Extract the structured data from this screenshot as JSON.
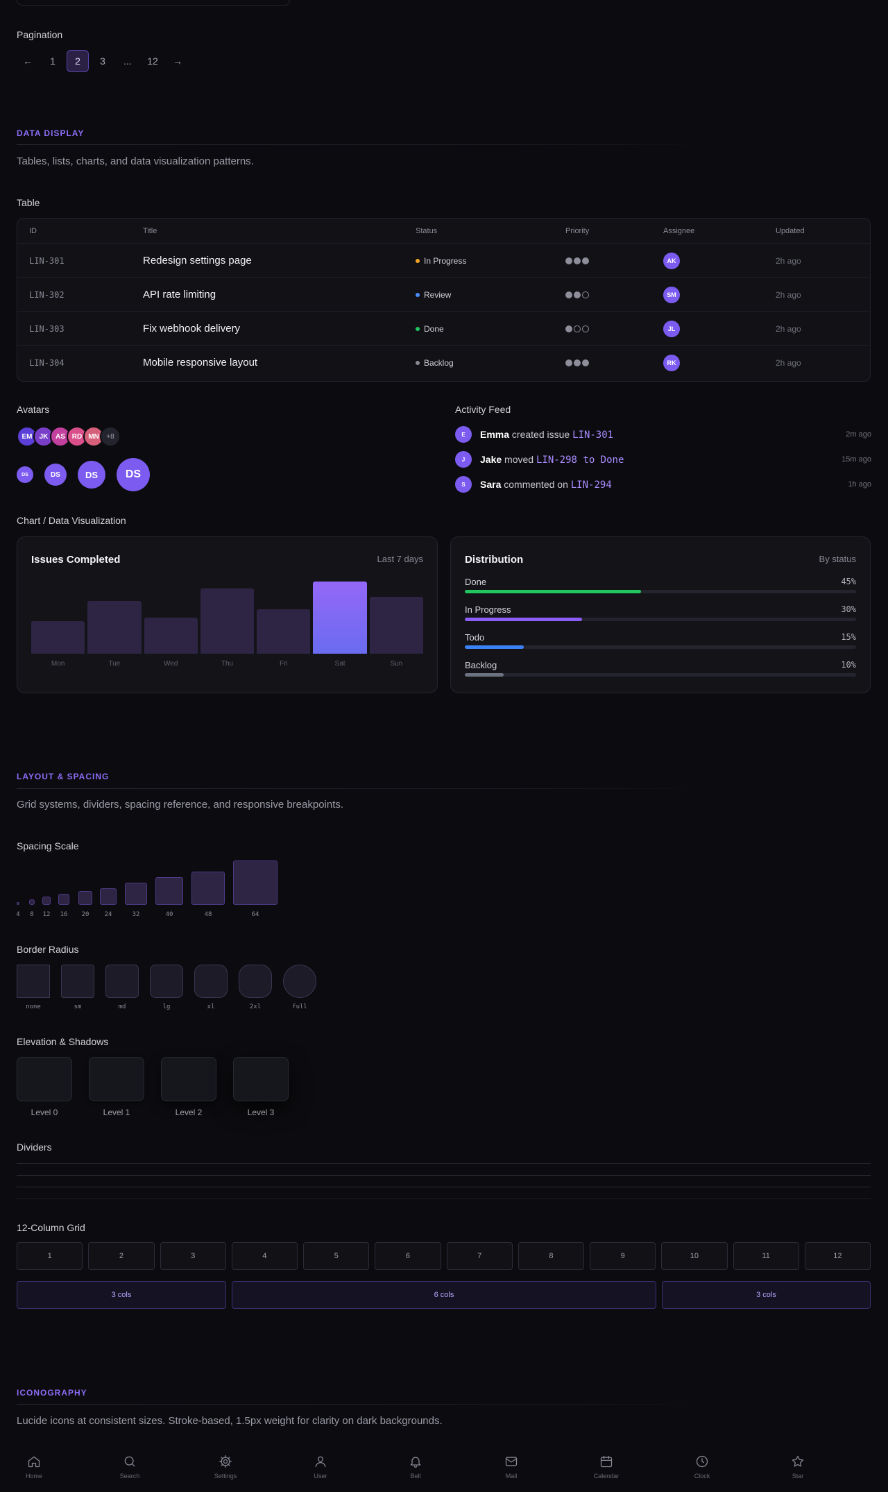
{
  "pagination": {
    "title": "Pagination",
    "prev": "←",
    "next": "→",
    "pages": [
      "1",
      "2",
      "3",
      "...",
      "12"
    ],
    "active": "2"
  },
  "data_display": {
    "label": "DATA DISPLAY",
    "desc": "Tables, lists, charts, and data visualization patterns."
  },
  "table": {
    "title": "Table",
    "headers": [
      "ID",
      "Title",
      "Status",
      "Priority",
      "Assignee",
      "Updated"
    ],
    "rows": [
      {
        "id": "LIN-301",
        "title": "Redesign settings page",
        "status": "In Progress",
        "status_color": "#f5a524",
        "priority": 3,
        "assignee": "AK",
        "updated": "2h ago"
      },
      {
        "id": "LIN-302",
        "title": "API rate limiting",
        "status": "Review",
        "status_color": "#4c8dff",
        "priority": 2,
        "assignee": "SM",
        "updated": "2h ago"
      },
      {
        "id": "LIN-303",
        "title": "Fix webhook delivery",
        "status": "Done",
        "status_color": "#22c55e",
        "priority": 1,
        "assignee": "JL",
        "updated": "2h ago"
      },
      {
        "id": "LIN-304",
        "title": "Mobile responsive layout",
        "status": "Backlog",
        "status_color": "#8a8a96",
        "priority": 3,
        "assignee": "RK",
        "updated": "2h ago"
      }
    ]
  },
  "avatars": {
    "title": "Avatars",
    "stack": [
      {
        "initials": "EM",
        "color": "#5b3fd6"
      },
      {
        "initials": "JK",
        "color": "#7a3fc9"
      },
      {
        "initials": "AS",
        "color": "#c2409e"
      },
      {
        "initials": "RD",
        "color": "#d94f8a"
      },
      {
        "initials": "MN",
        "color": "#d65f7a"
      }
    ],
    "more": "+8",
    "sizes": [
      "DS",
      "DS",
      "DS",
      "DS"
    ]
  },
  "activity": {
    "title": "Activity Feed",
    "items": [
      {
        "initial": "E",
        "name": "Emma",
        "action": "created issue",
        "ref": "LIN-301",
        "time": "2m ago"
      },
      {
        "initial": "J",
        "name": "Jake",
        "action": "moved",
        "ref": "LIN-298 to Done",
        "time": "15m ago"
      },
      {
        "initial": "S",
        "name": "Sara",
        "action": "commented on",
        "ref": "LIN-294",
        "time": "1h ago"
      }
    ]
  },
  "chart_section": {
    "title": "Chart / Data Visualization"
  },
  "chart_data": [
    {
      "type": "bar",
      "title": "Issues Completed",
      "subtitle": "Last 7 days",
      "categories": [
        "Mon",
        "Tue",
        "Wed",
        "Thu",
        "Fri",
        "Sat",
        "Sun"
      ],
      "values": [
        45,
        73,
        50,
        90,
        62,
        100,
        79
      ],
      "highlight": "Sat",
      "ylim": [
        0,
        100
      ]
    },
    {
      "type": "bar",
      "orientation": "horizontal",
      "title": "Distribution",
      "subtitle": "By status",
      "categories": [
        "Done",
        "In Progress",
        "Todo",
        "Backlog"
      ],
      "values": [
        45,
        30,
        15,
        10
      ],
      "labels": [
        "45%",
        "30%",
        "15%",
        "10%"
      ],
      "colors": [
        "#22c55e",
        "#8b5cf6",
        "#3b82f6",
        "#6b7280"
      ]
    }
  ],
  "layout": {
    "label": "LAYOUT & SPACING",
    "desc": "Grid systems, dividers, spacing reference, and responsive breakpoints."
  },
  "spacing": {
    "title": "Spacing Scale",
    "values": [
      "4",
      "8",
      "12",
      "16",
      "20",
      "24",
      "32",
      "40",
      "48",
      "64"
    ]
  },
  "radius": {
    "title": "Border Radius",
    "values": [
      "none",
      "sm",
      "md",
      "lg",
      "xl",
      "2xl",
      "full"
    ]
  },
  "elevation": {
    "title": "Elevation & Shadows",
    "levels": [
      "Level 0",
      "Level 1",
      "Level 2",
      "Level 3"
    ]
  },
  "dividers": {
    "title": "Dividers"
  },
  "grid": {
    "title": "12-Column Grid",
    "cols": [
      "1",
      "2",
      "3",
      "4",
      "5",
      "6",
      "7",
      "8",
      "9",
      "10",
      "11",
      "12"
    ],
    "spans": [
      "3 cols",
      "6 cols",
      "3 cols"
    ]
  },
  "iconography": {
    "label": "ICONOGRAPHY",
    "desc": "Lucide icons at consistent sizes. Stroke-based, 1.5px weight for clarity on dark backgrounds."
  },
  "nav": [
    {
      "label": "Home",
      "icon": "home-icon"
    },
    {
      "label": "Search",
      "icon": "search-icon"
    },
    {
      "label": "Settings",
      "icon": "settings-icon"
    },
    {
      "label": "User",
      "icon": "user-icon"
    },
    {
      "label": "Bell",
      "icon": "bell-icon"
    },
    {
      "label": "Mail",
      "icon": "mail-icon"
    },
    {
      "label": "Calendar",
      "icon": "calendar-icon"
    },
    {
      "label": "Clock",
      "icon": "clock-icon"
    },
    {
      "label": "Star",
      "icon": "star-icon"
    }
  ]
}
